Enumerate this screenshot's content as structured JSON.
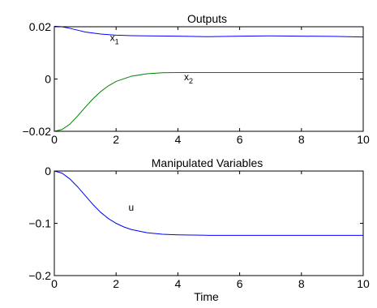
{
  "chart_data": [
    {
      "type": "line",
      "title": "Outputs",
      "xlabel": "",
      "ylabel": "",
      "xlim": [
        0,
        10
      ],
      "ylim": [
        -0.02,
        0.02
      ],
      "xticks": [
        0,
        2,
        4,
        6,
        8,
        10
      ],
      "xtick_labels": [
        "0",
        "2",
        "4",
        "6",
        "8",
        "10"
      ],
      "yticks": [
        -0.02,
        0,
        0.02
      ],
      "ytick_labels": [
        "−0.02",
        "0",
        "0.02"
      ],
      "grid": false,
      "legend": "none",
      "series": [
        {
          "color": "#0000ff",
          "x": [
            0,
            0.25,
            0.5,
            0.75,
            1,
            1.5,
            2,
            2.5,
            3,
            4,
            5,
            6,
            7,
            8,
            9,
            10
          ],
          "y": [
            0.0202,
            0.02,
            0.0194,
            0.0187,
            0.018,
            0.0172,
            0.0168,
            0.0166,
            0.0165,
            0.0164,
            0.0162,
            0.0164,
            0.0165,
            0.0164,
            0.0163,
            0.0161
          ]
        },
        {
          "color": "#008000",
          "x": [
            0,
            0.25,
            0.5,
            0.75,
            1,
            1.25,
            1.5,
            1.75,
            2,
            2.5,
            3,
            3.5,
            4,
            5,
            6,
            7,
            8,
            9,
            10
          ],
          "y": [
            -0.02,
            -0.0193,
            -0.0173,
            -0.0142,
            -0.0108,
            -0.0076,
            -0.0048,
            -0.0026,
            -0.0009,
            0.0011,
            0.002,
            0.0024,
            0.0025,
            0.0025,
            0.0025,
            0.0025,
            0.0025,
            0.0025,
            0.0025
          ]
        }
      ],
      "annotations": [
        {
          "text": "x",
          "sub": "1",
          "x": 1.8,
          "y": 0.0145
        },
        {
          "text": "x",
          "sub": "2",
          "x": 4.2,
          "y": -0.0005
        }
      ]
    },
    {
      "type": "line",
      "title": "Manipulated Variables",
      "xlabel": "Time",
      "ylabel": "",
      "xlim": [
        0,
        10
      ],
      "ylim": [
        -0.2,
        0
      ],
      "xticks": [
        0,
        2,
        4,
        6,
        8,
        10
      ],
      "xtick_labels": [
        "0",
        "2",
        "4",
        "6",
        "8",
        "10"
      ],
      "yticks": [
        -0.2,
        -0.1,
        0
      ],
      "ytick_labels": [
        "−0.2",
        "−0.1",
        "0"
      ],
      "grid": false,
      "legend": "none",
      "series": [
        {
          "color": "#0000ff",
          "x": [
            0,
            0.25,
            0.5,
            0.75,
            1,
            1.25,
            1.5,
            1.75,
            2,
            2.25,
            2.5,
            3,
            3.5,
            4,
            5,
            6,
            7,
            8,
            9,
            10
          ],
          "y": [
            0,
            -0.004,
            -0.015,
            -0.03,
            -0.047,
            -0.064,
            -0.079,
            -0.091,
            -0.1,
            -0.107,
            -0.112,
            -0.118,
            -0.121,
            -0.122,
            -0.123,
            -0.123,
            -0.123,
            -0.123,
            -0.123,
            -0.123
          ]
        }
      ],
      "annotations": [
        {
          "text": "u",
          "sub": "",
          "x": 2.4,
          "y": -0.076
        }
      ]
    }
  ]
}
